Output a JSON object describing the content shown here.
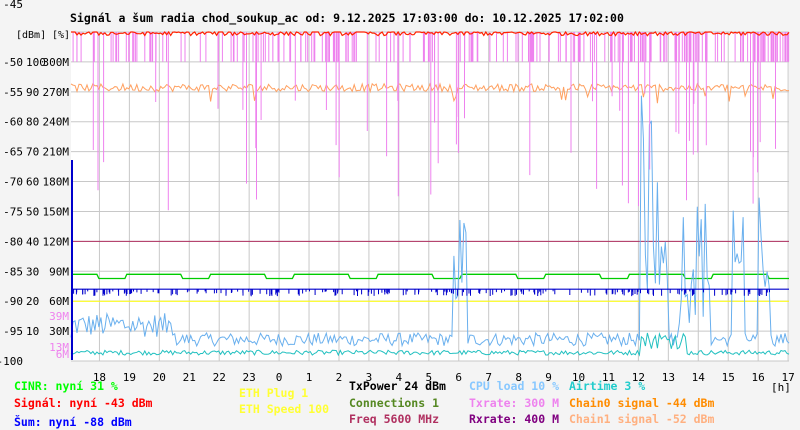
{
  "chart_data": {
    "type": "line",
    "title": "Signál a šum radia chod_soukup_ac od: 9.12.2025 17:03:00 do: 10.12.2025 17:02:00",
    "y_left_label": "[dBm]",
    "y_right_label": "[%]",
    "x_unit_label": "[h]",
    "ylim": [
      -100,
      -45
    ],
    "grid": true,
    "y_left_ticks": [
      "-45",
      "-50",
      "-55",
      "-60",
      "-65",
      "-70",
      "-75",
      "-80",
      "-85",
      "-90",
      "-95",
      "-100"
    ],
    "y_pct_ticks": [
      "100",
      "90",
      "80",
      "70",
      "60",
      "50",
      "40",
      "30",
      "20",
      "10"
    ],
    "y_rate_ticks": [
      "300M",
      "270M",
      "240M",
      "210M",
      "180M",
      "150M",
      "120M",
      "90M",
      "60M",
      "30M"
    ],
    "x_ticks": [
      "18",
      "19",
      "20",
      "21",
      "22",
      "23",
      "0",
      "1",
      "2",
      "3",
      "4",
      "5",
      "6",
      "7",
      "8",
      "9",
      "10",
      "11",
      "12",
      "13",
      "14",
      "15",
      "16",
      "17"
    ],
    "x_range_hours": [
      17.05,
      41.03
    ],
    "markers": [
      {
        "label": "39M",
        "value_dbm": -92.5,
        "color": "#ee82ee"
      },
      {
        "label": "13M",
        "value_dbm": -97.7,
        "color": "#ee82ee"
      },
      {
        "label": "6M",
        "value_dbm": -98.8,
        "color": "#ee82ee"
      }
    ],
    "series": [
      {
        "key": "cinr",
        "name": "CINR",
        "color": "#00cc00",
        "base": -85.5,
        "low": -86.2,
        "width": 1.3
      },
      {
        "key": "txpower",
        "name": "TxPower",
        "color": "#b03060",
        "base": -80.0,
        "width": 1.0
      },
      {
        "key": "noise",
        "name": "Šum",
        "color": "#0000cc",
        "base": -88.0,
        "width": 1.2
      },
      {
        "key": "eth_speed",
        "name": "ETH Speed",
        "color": "#ffff00",
        "base": -90.0,
        "width": 1.0
      },
      {
        "key": "cpu",
        "name": "CPU load",
        "color": "#6ab0ee",
        "base": -97.5,
        "width": 1.0
      },
      {
        "key": "airtime",
        "name": "Airtime",
        "color": "#22c0c0",
        "base": -99.0,
        "width": 1.0
      },
      {
        "key": "chain0",
        "name": "Chain0 signal",
        "color": "#ffa060",
        "base": -54.3,
        "width": 1.0
      },
      {
        "key": "txrate",
        "name": "Txrate",
        "color": "#ee82ee",
        "base": -48.0,
        "width": 1.0
      },
      {
        "key": "signal",
        "name": "Signál",
        "color": "#ff2200",
        "base": -45.2,
        "width": 1.2
      }
    ]
  },
  "legend": {
    "cinr": "CINR: nyní 31 %",
    "signal": "Signál: nyní -43 dBm",
    "noise": "Šum: nyní -88 dBm",
    "eth_plug": "ETH Plug 1",
    "eth_speed": "ETH Speed 100",
    "txpower": "TxPower 24 dBm",
    "connections": "Connections 1",
    "freq": "Freq 5600 MHz",
    "cpu": "CPU load 10 %",
    "txrate": "Txrate: 300 M",
    "rxrate": "Rxrate: 400 M",
    "airtime": "Airtime 3 %",
    "chain0": "Chain0 signal -44 dBm",
    "chain1": "Chain1 signal -52 dBm"
  },
  "legend_colors": {
    "cinr": "#00ff00",
    "signal": "#ff0000",
    "noise": "#0000ff",
    "eth_plug": "#ffff33",
    "eth_speed": "#ffff33",
    "txpower": "#000000",
    "connections": "#558822",
    "freq": "#b03060",
    "cpu": "#88c8ff",
    "txrate": "#ee82ee",
    "rxrate": "#800080",
    "airtime": "#22cccc",
    "chain0": "#ff8c00",
    "chain1": "#ffb080"
  }
}
